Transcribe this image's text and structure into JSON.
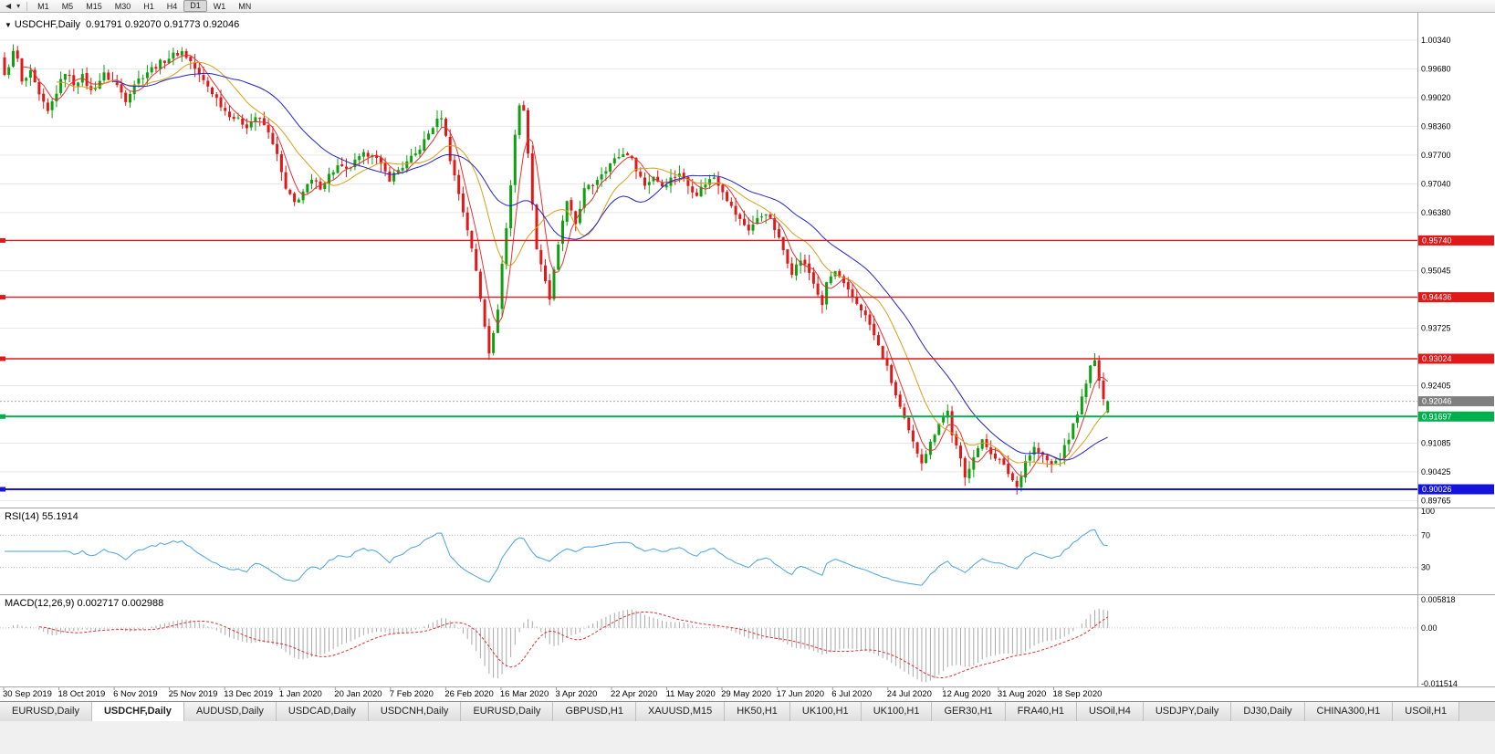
{
  "toolbar": {
    "timeframes": [
      "M1",
      "M5",
      "M15",
      "M30",
      "H1",
      "H4",
      "D1",
      "W1",
      "MN"
    ],
    "active_timeframe": "D1"
  },
  "chart": {
    "title": "USDCHF,Daily",
    "ohlc_text": "0.91791 0.92070 0.91773 0.92046",
    "colors": {
      "bull": "#0fa00f",
      "bear": "#e01818",
      "ma_fast": "#e83030",
      "ma_mid": "#d8a018",
      "ma_slow": "#2323cc",
      "grid": "#e7e7e7",
      "rsi": "#4aa2e0",
      "macd_hist": "#a9a9a9",
      "macd_signal": "#e03030",
      "hline_red": "#e01818",
      "hline_green": "#00b050",
      "hline_blue": "#1414dc",
      "current_tag": "#7f7f7f"
    },
    "price_axis": [
      {
        "label": "1.00340",
        "value": 1.0034
      },
      {
        "label": "0.99680",
        "value": 0.9968
      },
      {
        "label": "0.99020",
        "value": 0.9902
      },
      {
        "label": "0.98360",
        "value": 0.9836
      },
      {
        "label": "0.97700",
        "value": 0.977
      },
      {
        "label": "0.97040",
        "value": 0.9704
      },
      {
        "label": "0.96380",
        "value": 0.9638
      },
      {
        "label": "0.95045",
        "value": 0.95045
      },
      {
        "label": "0.93725",
        "value": 0.93725
      },
      {
        "label": "0.92405",
        "value": 0.92405
      },
      {
        "label": "0.91085",
        "value": 0.91085
      },
      {
        "label": "0.90425",
        "value": 0.90425
      },
      {
        "label": "0.89765",
        "value": 0.89765
      }
    ],
    "hlines": [
      {
        "label": "0.95740",
        "value": 0.9574,
        "color": "red"
      },
      {
        "label": "0.94436",
        "value": 0.94436,
        "color": "red"
      },
      {
        "label": "0.93024",
        "value": 0.93024,
        "color": "red"
      },
      {
        "label": "0.91697",
        "value": 0.91697,
        "color": "green"
      },
      {
        "label": "0.90026",
        "value": 0.90026,
        "color": "blue"
      }
    ],
    "current_price": {
      "label": "0.92046",
      "value": 0.92046
    }
  },
  "rsi": {
    "label": "RSI(14) 55.1914",
    "period": 14,
    "value": 55.1914,
    "levels": [
      {
        "label": "100",
        "value": 100
      },
      {
        "label": "70",
        "value": 70
      },
      {
        "label": "30",
        "value": 30
      }
    ]
  },
  "macd": {
    "label": "MACD(12,26,9) 0.002717 0.002988",
    "main": 0.002717,
    "signal": 0.002988,
    "axis": [
      {
        "label": "0.005818",
        "value": 0.005818
      },
      {
        "label": "0.00",
        "value": 0
      },
      {
        "label": "-0.011514",
        "value": -0.011514
      }
    ]
  },
  "dates": [
    "30 Sep 2019",
    "18 Oct 2019",
    "6 Nov 2019",
    "25 Nov 2019",
    "13 Dec 2019",
    "1 Jan 2020",
    "20 Jan 2020",
    "7 Feb 2020",
    "26 Feb 2020",
    "16 Mar 2020",
    "3 Apr 2020",
    "22 Apr 2020",
    "11 May 2020",
    "29 May 2020",
    "17 Jun 2020",
    "6 Jul 2020",
    "24 Jul 2020",
    "12 Aug 2020",
    "31 Aug 2020",
    "18 Sep 2020"
  ],
  "tabs": [
    {
      "label": "EURUSD,Daily",
      "active": false
    },
    {
      "label": "USDCHF,Daily",
      "active": true
    },
    {
      "label": "AUDUSD,Daily",
      "active": false
    },
    {
      "label": "USDCAD,Daily",
      "active": false
    },
    {
      "label": "USDCNH,Daily",
      "active": false
    },
    {
      "label": "EURUSD,Daily",
      "active": false
    },
    {
      "label": "GBPUSD,H1",
      "active": false
    },
    {
      "label": "XAUUSD,M15",
      "active": false
    },
    {
      "label": "HK50,H1",
      "active": false
    },
    {
      "label": "UK100,H1",
      "active": false
    },
    {
      "label": "UK100,H1",
      "active": false
    },
    {
      "label": "GER30,H1",
      "active": false
    },
    {
      "label": "FRA40,H1",
      "active": false
    },
    {
      "label": "USOil,H4",
      "active": false
    },
    {
      "label": "USDJPY,Daily",
      "active": false
    },
    {
      "label": "DJ30,Daily",
      "active": false
    },
    {
      "label": "CHINA300,H1",
      "active": false
    },
    {
      "label": "USOil,H1",
      "active": false
    }
  ],
  "chart_data": {
    "type": "candlestick",
    "symbol": "USDCHF",
    "timeframe": "Daily",
    "x_range": [
      "30 Sep 2019",
      "25 Sep 2020"
    ],
    "y_range": [
      0.8976,
      1.008
    ],
    "num_candles": 256,
    "last_candle": {
      "open": 0.91791,
      "high": 0.9207,
      "low": 0.91773,
      "close": 0.92046
    },
    "support_resistance": [
      0.9574,
      0.94436,
      0.93024,
      0.91697,
      0.90026
    ],
    "close_anchors": [
      [
        0,
        0.995
      ],
      [
        2,
        1.0005
      ],
      [
        3,
        0.999
      ],
      [
        4,
        0.9935
      ],
      [
        6,
        0.9958
      ],
      [
        8,
        0.9905
      ],
      [
        10,
        0.9868
      ],
      [
        12,
        0.9915
      ],
      [
        14,
        0.9962
      ],
      [
        16,
        0.9935
      ],
      [
        18,
        0.995
      ],
      [
        20,
        0.9916
      ],
      [
        23,
        0.9955
      ],
      [
        26,
        0.993
      ],
      [
        28,
        0.9898
      ],
      [
        30,
        0.9935
      ],
      [
        33,
        0.9962
      ],
      [
        36,
        0.9982
      ],
      [
        39,
        1.0
      ],
      [
        41,
        1.0008
      ],
      [
        43,
        0.9985
      ],
      [
        45,
        0.9952
      ],
      [
        47,
        0.9928
      ],
      [
        49,
        0.99
      ],
      [
        51,
        0.9872
      ],
      [
        53,
        0.9856
      ],
      [
        56,
        0.9838
      ],
      [
        58,
        0.9858
      ],
      [
        60,
        0.9838
      ],
      [
        62,
        0.98
      ],
      [
        63,
        0.9768
      ],
      [
        65,
        0.969
      ],
      [
        67,
        0.966
      ],
      [
        69,
        0.9686
      ],
      [
        71,
        0.971
      ],
      [
        73,
        0.9698
      ],
      [
        75,
        0.9724
      ],
      [
        77,
        0.9744
      ],
      [
        79,
        0.9734
      ],
      [
        81,
        0.9754
      ],
      [
        83,
        0.977
      ],
      [
        85,
        0.9776
      ],
      [
        87,
        0.9744
      ],
      [
        89,
        0.9716
      ],
      [
        91,
        0.9736
      ],
      [
        93,
        0.9752
      ],
      [
        95,
        0.9772
      ],
      [
        97,
        0.9802
      ],
      [
        99,
        0.9836
      ],
      [
        101,
        0.986
      ],
      [
        103,
        0.9762
      ],
      [
        105,
        0.9682
      ],
      [
        107,
        0.96
      ],
      [
        109,
        0.9504
      ],
      [
        111,
        0.9382
      ],
      [
        112,
        0.932
      ],
      [
        113,
        0.9356
      ],
      [
        114,
        0.942
      ],
      [
        115,
        0.952
      ],
      [
        116,
        0.9602
      ],
      [
        117,
        0.97
      ],
      [
        118,
        0.982
      ],
      [
        119,
        0.9886
      ],
      [
        120,
        0.9868
      ],
      [
        121,
        0.978
      ],
      [
        122,
        0.9652
      ],
      [
        123,
        0.956
      ],
      [
        125,
        0.9482
      ],
      [
        126,
        0.944
      ],
      [
        127,
        0.9502
      ],
      [
        128,
        0.956
      ],
      [
        129,
        0.962
      ],
      [
        130,
        0.966
      ],
      [
        132,
        0.9612
      ],
      [
        134,
        0.969
      ],
      [
        136,
        0.9702
      ],
      [
        138,
        0.973
      ],
      [
        140,
        0.975
      ],
      [
        142,
        0.9768
      ],
      [
        144,
        0.9775
      ],
      [
        146,
        0.974
      ],
      [
        148,
        0.97
      ],
      [
        150,
        0.9722
      ],
      [
        152,
        0.97
      ],
      [
        154,
        0.9716
      ],
      [
        156,
        0.973
      ],
      [
        158,
        0.97
      ],
      [
        160,
        0.9682
      ],
      [
        162,
        0.9706
      ],
      [
        164,
        0.972
      ],
      [
        166,
        0.969
      ],
      [
        168,
        0.965
      ],
      [
        170,
        0.962
      ],
      [
        172,
        0.96
      ],
      [
        174,
        0.9622
      ],
      [
        176,
        0.964
      ],
      [
        178,
        0.96
      ],
      [
        180,
        0.9552
      ],
      [
        182,
        0.9502
      ],
      [
        184,
        0.953
      ],
      [
        186,
        0.95
      ],
      [
        188,
        0.9452
      ],
      [
        189,
        0.942
      ],
      [
        190,
        0.9478
      ],
      [
        192,
        0.9502
      ],
      [
        194,
        0.947
      ],
      [
        196,
        0.9442
      ],
      [
        198,
        0.9418
      ],
      [
        200,
        0.938
      ],
      [
        202,
        0.933
      ],
      [
        204,
        0.928
      ],
      [
        206,
        0.9218
      ],
      [
        208,
        0.916
      ],
      [
        210,
        0.9108
      ],
      [
        212,
        0.9068
      ],
      [
        214,
        0.9108
      ],
      [
        216,
        0.9158
      ],
      [
        218,
        0.9182
      ],
      [
        219,
        0.913
      ],
      [
        221,
        0.9068
      ],
      [
        222,
        0.9028
      ],
      [
        224,
        0.9082
      ],
      [
        226,
        0.9112
      ],
      [
        228,
        0.9088
      ],
      [
        230,
        0.9068
      ],
      [
        232,
        0.904
      ],
      [
        234,
        0.9008
      ],
      [
        236,
        0.9068
      ],
      [
        238,
        0.9098
      ],
      [
        240,
        0.9078
      ],
      [
        242,
        0.9058
      ],
      [
        244,
        0.9076
      ],
      [
        246,
        0.912
      ],
      [
        248,
        0.918
      ],
      [
        250,
        0.9242
      ],
      [
        251,
        0.9288
      ],
      [
        252,
        0.9292
      ],
      [
        253,
        0.9258
      ],
      [
        254,
        0.9216
      ],
      [
        255,
        0.92046
      ]
    ],
    "indicators": [
      {
        "name": "MA fast",
        "type": "sma",
        "period": 5,
        "color_key": "ma_fast"
      },
      {
        "name": "MA mid",
        "type": "sma",
        "period": 13,
        "color_key": "ma_mid"
      },
      {
        "name": "MA slow",
        "type": "sma",
        "period": 26,
        "color_key": "ma_slow"
      },
      {
        "name": "RSI",
        "period": 14
      },
      {
        "name": "MACD",
        "fast": 12,
        "slow": 26,
        "signal": 9
      }
    ]
  }
}
